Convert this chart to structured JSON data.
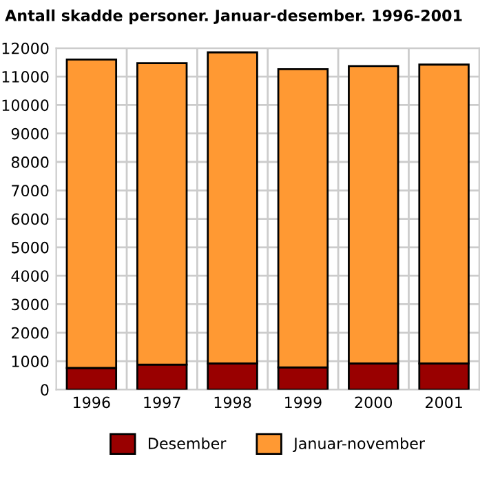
{
  "chart_data": {
    "type": "bar",
    "title": "Antall skadde personer. Januar-desember. 1996-2001",
    "categories": [
      "1996",
      "1997",
      "1998",
      "1999",
      "2000",
      "2001"
    ],
    "stacked": true,
    "series": [
      {
        "name": "Desember",
        "color": "#990000",
        "values": [
          760,
          880,
          920,
          780,
          920,
          920
        ]
      },
      {
        "name": "Januar-november",
        "color": "#ff9933",
        "values": [
          10840,
          10590,
          10930,
          10480,
          10450,
          10500
        ]
      }
    ],
    "ylim": [
      0,
      12000
    ],
    "yticks": [
      0,
      1000,
      2000,
      3000,
      4000,
      5000,
      6000,
      7000,
      8000,
      9000,
      10000,
      11000,
      12000
    ],
    "grid": true,
    "legend": "bottom"
  }
}
